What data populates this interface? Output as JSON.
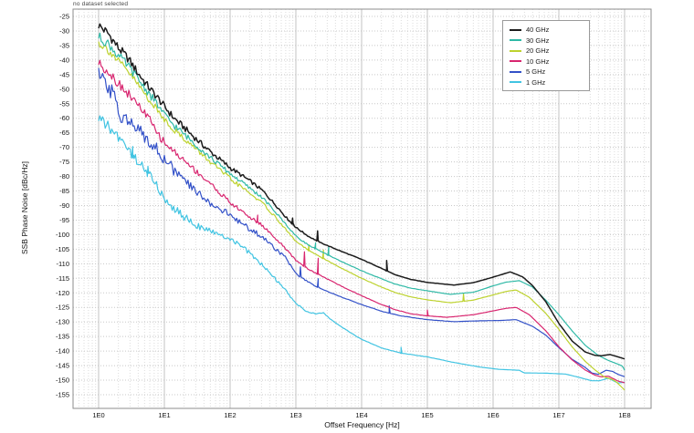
{
  "header": {
    "status_text": "no dataset selected"
  },
  "axes": {
    "x": {
      "label": "Offset Frequency [Hz]",
      "tick_labels": [
        "1E0",
        "1E1",
        "1E2",
        "1E3",
        "1E4",
        "1E5",
        "1E6",
        "1E7",
        "1E8"
      ],
      "scale": "log"
    },
    "y": {
      "label": "SSB Phase Noise [dBc/Hz]",
      "tick_start": -25,
      "tick_end": -155,
      "tick_step": -5
    }
  },
  "chart_data": {
    "type": "line",
    "title": "",
    "xlabel": "Offset Frequency [Hz]",
    "ylabel": "SSB Phase Noise [dBc/Hz]",
    "x_scale": "log",
    "x_range_hz": [
      1,
      100000000
    ],
    "ylim": [
      -157.5,
      -22.5
    ],
    "grid": true,
    "legend_position": "top-right",
    "series": [
      {
        "name": "40 GHz",
        "color": "#1c1c1c",
        "noise": 1.0,
        "points": [
          [
            0,
            -28
          ],
          [
            0.15,
            -31
          ],
          [
            0.3,
            -35.8
          ],
          [
            0.45,
            -39.5
          ],
          [
            0.6,
            -44.5
          ],
          [
            0.75,
            -49
          ],
          [
            0.9,
            -53
          ],
          [
            1.0,
            -56
          ],
          [
            1.15,
            -60
          ],
          [
            1.3,
            -63.2
          ],
          [
            1.5,
            -67.5
          ],
          [
            1.7,
            -71.5
          ],
          [
            2.0,
            -77
          ],
          [
            2.3,
            -81.5
          ],
          [
            2.5,
            -85
          ],
          [
            2.7,
            -90
          ],
          [
            2.85,
            -94
          ],
          [
            3.0,
            -97.5
          ],
          [
            3.2,
            -100.7
          ],
          [
            3.4,
            -103
          ],
          [
            3.7,
            -105.8
          ],
          [
            4.0,
            -108.5
          ],
          [
            4.25,
            -111
          ],
          [
            4.5,
            -113.7
          ],
          [
            4.75,
            -115.4
          ],
          [
            5.0,
            -116.4
          ],
          [
            5.4,
            -117.3
          ],
          [
            5.7,
            -116.5
          ],
          [
            6.0,
            -114.6
          ],
          [
            6.26,
            -112.8
          ],
          [
            6.45,
            -114.5
          ],
          [
            6.6,
            -117.5
          ],
          [
            6.8,
            -123
          ],
          [
            7.0,
            -130.5
          ],
          [
            7.2,
            -136.5
          ],
          [
            7.4,
            -140.3
          ],
          [
            7.55,
            -141.5
          ],
          [
            7.65,
            -141.6
          ],
          [
            7.78,
            -141.2
          ],
          [
            7.9,
            -142
          ],
          [
            8.0,
            -142.7
          ]
        ],
        "spurs": [
          [
            2.95,
            2
          ],
          [
            3.33,
            3.5
          ],
          [
            4.38,
            3.5
          ]
        ]
      },
      {
        "name": "30 GHz",
        "color": "#2fb9a6",
        "noise": 1.0,
        "points": [
          [
            0,
            -32
          ],
          [
            0.15,
            -34.5
          ],
          [
            0.3,
            -38.5
          ],
          [
            0.45,
            -42
          ],
          [
            0.6,
            -46.5
          ],
          [
            0.75,
            -51
          ],
          [
            0.9,
            -55.5
          ],
          [
            1.0,
            -58.8
          ],
          [
            1.15,
            -62.5
          ],
          [
            1.3,
            -65.5
          ],
          [
            1.5,
            -69.5
          ],
          [
            1.7,
            -73.5
          ],
          [
            2.0,
            -79
          ],
          [
            2.3,
            -84
          ],
          [
            2.5,
            -87.5
          ],
          [
            2.7,
            -92.5
          ],
          [
            2.85,
            -96.5
          ],
          [
            3.0,
            -100.5
          ],
          [
            3.2,
            -103.7
          ],
          [
            3.4,
            -106
          ],
          [
            3.7,
            -109.3
          ],
          [
            4.0,
            -112.4
          ],
          [
            4.25,
            -114.7
          ],
          [
            4.5,
            -116.9
          ],
          [
            4.75,
            -118.4
          ],
          [
            5.0,
            -119.3
          ],
          [
            5.35,
            -120.5
          ],
          [
            5.7,
            -119.8
          ],
          [
            6.0,
            -117.6
          ],
          [
            6.2,
            -116.3
          ],
          [
            6.4,
            -115.8
          ],
          [
            6.6,
            -118
          ],
          [
            6.8,
            -122.5
          ],
          [
            7.0,
            -127.5
          ],
          [
            7.2,
            -133
          ],
          [
            7.4,
            -138
          ],
          [
            7.6,
            -141.5
          ],
          [
            7.75,
            -143.2
          ],
          [
            7.9,
            -144.5
          ],
          [
            7.97,
            -145.2
          ],
          [
            8.0,
            -146.6
          ]
        ],
        "spurs": [
          [
            3.3,
            2
          ],
          [
            3.5,
            3
          ]
        ]
      },
      {
        "name": "20 GHz",
        "color": "#bdd22e",
        "noise": 0.9,
        "points": [
          [
            0,
            -34
          ],
          [
            0.15,
            -36.5
          ],
          [
            0.3,
            -40.5
          ],
          [
            0.45,
            -44
          ],
          [
            0.6,
            -48.5
          ],
          [
            0.75,
            -53
          ],
          [
            0.9,
            -57.5
          ],
          [
            1.0,
            -60.3
          ],
          [
            1.15,
            -64
          ],
          [
            1.3,
            -67
          ],
          [
            1.5,
            -71
          ],
          [
            1.7,
            -75
          ],
          [
            2.0,
            -80.8
          ],
          [
            2.3,
            -85.8
          ],
          [
            2.5,
            -89.3
          ],
          [
            2.7,
            -94.3
          ],
          [
            2.85,
            -98.3
          ],
          [
            3.0,
            -102.3
          ],
          [
            3.2,
            -105.5
          ],
          [
            3.4,
            -108
          ],
          [
            3.7,
            -111.6
          ],
          [
            4.0,
            -115
          ],
          [
            4.25,
            -117.5
          ],
          [
            4.5,
            -119.8
          ],
          [
            4.75,
            -121.4
          ],
          [
            5.0,
            -122.4
          ],
          [
            5.35,
            -123.4
          ],
          [
            5.7,
            -122.5
          ],
          [
            6.0,
            -120.7
          ],
          [
            6.2,
            -119.5
          ],
          [
            6.35,
            -119
          ],
          [
            6.55,
            -121.5
          ],
          [
            6.8,
            -127
          ],
          [
            7.0,
            -132.5
          ],
          [
            7.2,
            -138.5
          ],
          [
            7.4,
            -143.5
          ],
          [
            7.55,
            -146.5
          ],
          [
            7.7,
            -149
          ],
          [
            7.8,
            -149.6
          ],
          [
            7.87,
            -150.5
          ],
          [
            8.0,
            -153.4
          ]
        ],
        "spurs": [
          [
            3.2,
            2
          ],
          [
            3.42,
            3
          ],
          [
            5.55,
            2.5
          ]
        ]
      },
      {
        "name": "10 GHz",
        "color": "#d8256f",
        "noise": 1.0,
        "points": [
          [
            0,
            -41
          ],
          [
            0.15,
            -44
          ],
          [
            0.3,
            -48
          ],
          [
            0.45,
            -51.5
          ],
          [
            0.6,
            -55.5
          ],
          [
            0.75,
            -59.5
          ],
          [
            0.9,
            -65.5
          ],
          [
            1.0,
            -68.3
          ],
          [
            1.15,
            -71.5
          ],
          [
            1.3,
            -74.5
          ],
          [
            1.5,
            -78.5
          ],
          [
            1.7,
            -82.5
          ],
          [
            2.0,
            -89
          ],
          [
            2.3,
            -94
          ],
          [
            2.5,
            -97
          ],
          [
            2.7,
            -101.5
          ],
          [
            2.85,
            -105
          ],
          [
            3.0,
            -108.8
          ],
          [
            3.2,
            -112
          ],
          [
            3.4,
            -114.3
          ],
          [
            3.7,
            -117.8
          ],
          [
            4.0,
            -121
          ],
          [
            4.25,
            -123.5
          ],
          [
            4.5,
            -125.7
          ],
          [
            4.75,
            -127.2
          ],
          [
            5.0,
            -127.9
          ],
          [
            5.3,
            -128.4
          ],
          [
            5.7,
            -127.5
          ],
          [
            6.0,
            -126.2
          ],
          [
            6.2,
            -125.3
          ],
          [
            6.35,
            -125
          ],
          [
            6.55,
            -127.5
          ],
          [
            6.8,
            -133
          ],
          [
            7.0,
            -138.5
          ],
          [
            7.2,
            -143
          ],
          [
            7.4,
            -146.5
          ],
          [
            7.55,
            -148.3
          ],
          [
            7.65,
            -148.9
          ],
          [
            7.75,
            -148.6
          ],
          [
            7.9,
            -150.3
          ],
          [
            8.0,
            -150.9
          ]
        ],
        "spurs": [
          [
            2.42,
            2.5
          ],
          [
            3.13,
            5
          ],
          [
            3.34,
            5.5
          ],
          [
            5.0,
            2
          ]
        ]
      },
      {
        "name": "5 GHz",
        "color": "#3351c8",
        "noise": 1.8,
        "points": [
          [
            0,
            -45.5
          ],
          [
            0.15,
            -49.5
          ],
          [
            0.28,
            -54
          ],
          [
            0.34,
            -60.5
          ],
          [
            0.4,
            -58
          ],
          [
            0.5,
            -62.5
          ],
          [
            0.62,
            -64.5
          ],
          [
            0.75,
            -67
          ],
          [
            0.9,
            -71
          ],
          [
            1.0,
            -74
          ],
          [
            1.15,
            -78
          ],
          [
            1.3,
            -81.5
          ],
          [
            1.5,
            -85.5
          ],
          [
            1.7,
            -89
          ],
          [
            2.0,
            -93.5
          ],
          [
            2.3,
            -98
          ],
          [
            2.5,
            -101
          ],
          [
            2.7,
            -105
          ],
          [
            2.85,
            -108
          ],
          [
            3.0,
            -113.5
          ],
          [
            3.2,
            -116.5
          ],
          [
            3.4,
            -118.8
          ],
          [
            3.7,
            -121.5
          ],
          [
            4.0,
            -124
          ],
          [
            4.3,
            -126.3
          ],
          [
            4.6,
            -127.9
          ],
          [
            5.0,
            -129.2
          ],
          [
            5.4,
            -129.9
          ],
          [
            5.8,
            -129.6
          ],
          [
            6.1,
            -129.5
          ],
          [
            6.35,
            -129.2
          ],
          [
            6.6,
            -131.5
          ],
          [
            6.8,
            -134.5
          ],
          [
            7.0,
            -138.8
          ],
          [
            7.2,
            -142.8
          ],
          [
            7.4,
            -145.6
          ],
          [
            7.5,
            -147.5
          ],
          [
            7.6,
            -148
          ],
          [
            7.72,
            -146.6
          ],
          [
            7.82,
            -147
          ],
          [
            7.9,
            -148
          ],
          [
            8.0,
            -148.8
          ]
        ],
        "spurs": [
          [
            3.07,
            3.5
          ],
          [
            3.34,
            3
          ],
          [
            4.42,
            2.5
          ]
        ]
      },
      {
        "name": "1 GHz",
        "color": "#41c4e2",
        "noise": 1.2,
        "points": [
          [
            0,
            -60
          ],
          [
            0.12,
            -62.5
          ],
          [
            0.25,
            -65
          ],
          [
            0.4,
            -69.5
          ],
          [
            0.55,
            -73.5
          ],
          [
            0.7,
            -77.5
          ],
          [
            0.85,
            -82
          ],
          [
            1.0,
            -87.5
          ],
          [
            1.1,
            -90
          ],
          [
            1.25,
            -93
          ],
          [
            1.4,
            -95.5
          ],
          [
            1.6,
            -98
          ],
          [
            1.8,
            -99.9
          ],
          [
            2.0,
            -101.3
          ],
          [
            2.2,
            -104.5
          ],
          [
            2.4,
            -108.5
          ],
          [
            2.6,
            -113
          ],
          [
            2.8,
            -118
          ],
          [
            3.0,
            -123.5
          ],
          [
            3.15,
            -126.3
          ],
          [
            3.3,
            -127.2
          ],
          [
            3.42,
            -126.9
          ],
          [
            3.55,
            -129.5
          ],
          [
            3.7,
            -131.8
          ],
          [
            4.0,
            -136
          ],
          [
            4.3,
            -138.9
          ],
          [
            4.6,
            -140.7
          ],
          [
            5.0,
            -142
          ],
          [
            5.4,
            -143.9
          ],
          [
            5.8,
            -145.5
          ],
          [
            6.1,
            -146.3
          ],
          [
            6.4,
            -146.6
          ],
          [
            6.47,
            -147.5
          ],
          [
            6.8,
            -147.6
          ],
          [
            7.1,
            -147.9
          ],
          [
            7.3,
            -149
          ],
          [
            7.5,
            -150.2
          ],
          [
            7.62,
            -150.2
          ],
          [
            7.75,
            -149.3
          ],
          [
            7.9,
            -151
          ],
          [
            8.0,
            -150.7
          ]
        ],
        "spurs": [
          [
            0.52,
            3
          ],
          [
            0.75,
            2.5
          ],
          [
            4.6,
            2
          ]
        ]
      }
    ]
  }
}
